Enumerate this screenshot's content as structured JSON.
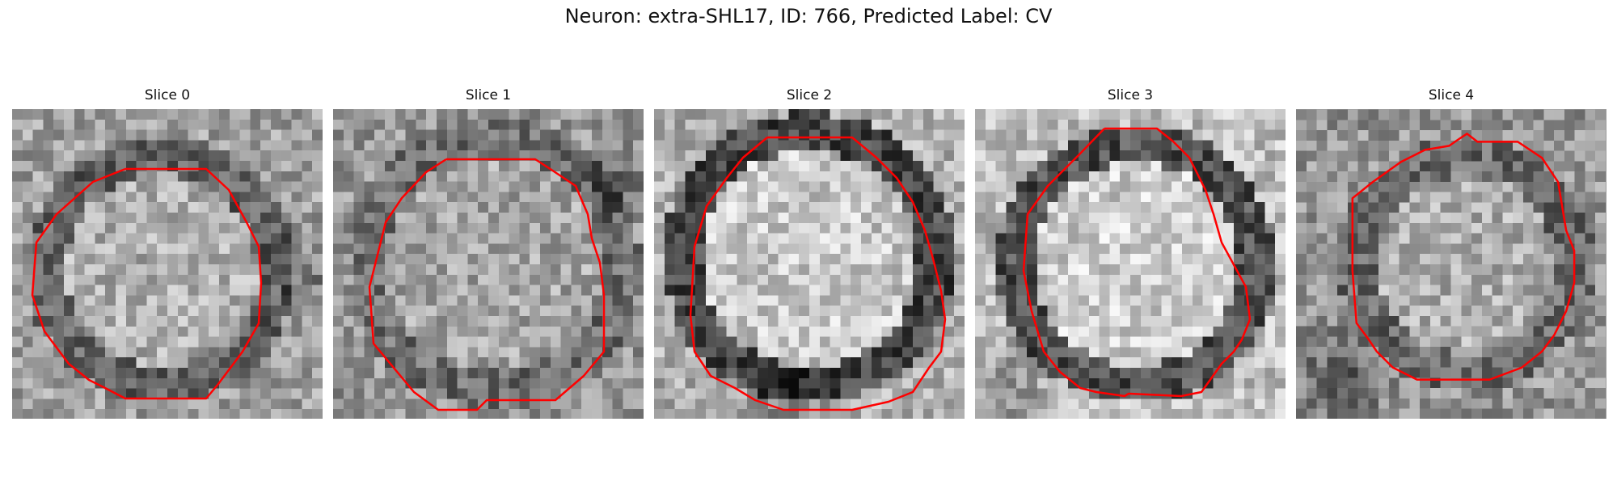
{
  "figure": {
    "title": "Neuron: extra-SHL17, ID: 766, Predicted Label: CV"
  },
  "panels": [
    {
      "title": "Slice 0",
      "contour": "red-outline",
      "dark_ring": "lower-right"
    },
    {
      "title": "Slice 1",
      "contour": "red-outline",
      "dark_ring": "right"
    },
    {
      "title": "Slice 2",
      "contour": "red-outline",
      "dark_ring": "bottom"
    },
    {
      "title": "Slice 3",
      "contour": "red-outline",
      "dark_ring": "bottom-left"
    },
    {
      "title": "Slice 4",
      "contour": "red-outline",
      "dark_ring": "bottom-left"
    }
  ],
  "colors": {
    "contour": "#ff0000",
    "background": "#ffffff"
  }
}
